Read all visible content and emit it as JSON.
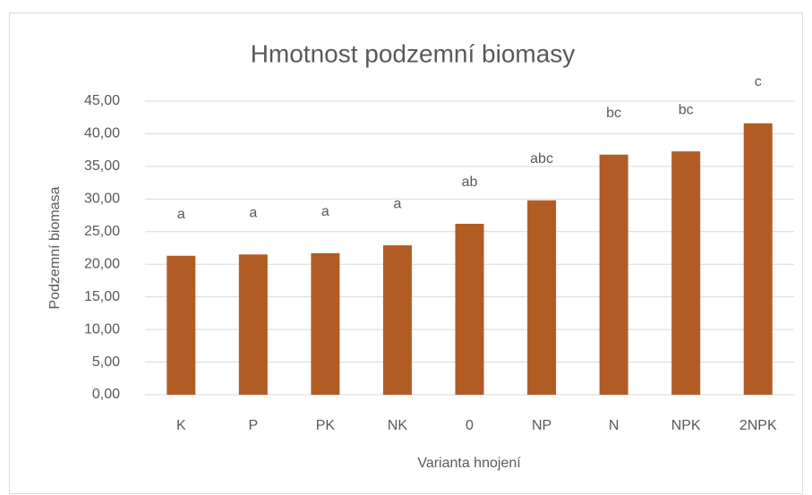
{
  "chart_data": {
    "type": "bar",
    "title": "Hmotnost podzemní biomasy",
    "x_label": "Varianta hnojení",
    "y_label": "Podzemní biomasa",
    "categories": [
      "K",
      "P",
      "PK",
      "NK",
      "0",
      "NP",
      "N",
      "NPK",
      "2NPK"
    ],
    "values": [
      21.3,
      21.5,
      21.7,
      22.9,
      26.2,
      29.8,
      36.8,
      37.3,
      41.6
    ],
    "annotations": [
      "a",
      "a",
      "a",
      "a",
      "ab",
      "abc",
      "bc",
      "bc",
      "c"
    ],
    "color": "#b15c24",
    "ylim": [
      0,
      45
    ],
    "yticks": [
      {
        "value": 0,
        "label": "0,00"
      },
      {
        "value": 5,
        "label": "5,00"
      },
      {
        "value": 10,
        "label": "10,00"
      },
      {
        "value": 15,
        "label": "15,00"
      },
      {
        "value": 20,
        "label": "20,00"
      },
      {
        "value": 25,
        "label": "25,00"
      },
      {
        "value": 30,
        "label": "30,00"
      },
      {
        "value": 35,
        "label": "35,00"
      },
      {
        "value": 40,
        "label": "40,00"
      },
      {
        "value": 45,
        "label": "45,00"
      }
    ],
    "grid": true
  }
}
